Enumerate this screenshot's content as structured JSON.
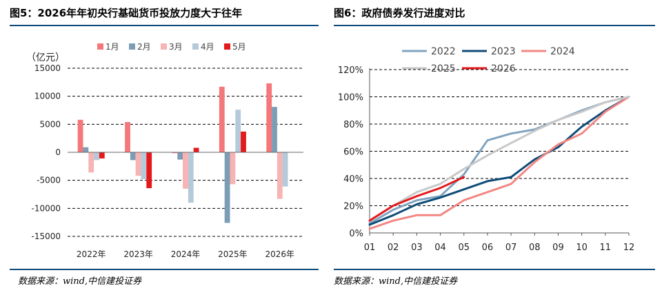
{
  "left": {
    "title": "图5：2026年年初央行基础货币投放力度大于往年",
    "source": "数据来源：wind,中信建投证券"
  },
  "right": {
    "title": "图6：政府债券发行进度对比",
    "source": "数据来源：wind,中信建投证券"
  },
  "colors": {
    "rule": "#0b4a7a"
  },
  "chart_data": [
    {
      "type": "bar",
      "title": "",
      "unit_label": "（亿元）",
      "categories": [
        "2022年",
        "2023年",
        "2024年",
        "2025年",
        "2026年"
      ],
      "ylim": [
        -15000,
        15000
      ],
      "yticks": [
        15000,
        10000,
        5000,
        0,
        -5000,
        -10000,
        -15000
      ],
      "grid": true,
      "legend_position": "top",
      "series": [
        {
          "name": "1月",
          "color": "#f4777a",
          "values": [
            5800,
            5400,
            -150,
            11700,
            12300
          ]
        },
        {
          "name": "2月",
          "color": "#7d9db5",
          "values": [
            900,
            -1400,
            -1300,
            -12600,
            8100
          ]
        },
        {
          "name": "3月",
          "color": "#f8b3b4",
          "values": [
            -3600,
            -4200,
            -6500,
            -5700,
            -8300
          ]
        },
        {
          "name": "4月",
          "color": "#b4cad9",
          "values": [
            -1400,
            -4800,
            -9000,
            7600,
            -6100
          ]
        },
        {
          "name": "5月",
          "color": "#e4191c",
          "values": [
            -1100,
            -6400,
            800,
            3700,
            null
          ]
        }
      ]
    },
    {
      "type": "line",
      "title": "",
      "x": [
        "01",
        "02",
        "03",
        "04",
        "05",
        "06",
        "07",
        "08",
        "09",
        "10",
        "11",
        "12"
      ],
      "ylim": [
        0,
        120
      ],
      "yticks": [
        "0%",
        "20%",
        "40%",
        "60%",
        "80%",
        "100%",
        "120%"
      ],
      "grid": true,
      "legend_position": "top",
      "series": [
        {
          "name": "2022",
          "color": "#7fa3c0",
          "values": [
            7,
            17,
            24,
            27,
            43,
            68,
            73,
            76,
            83,
            90,
            96,
            100
          ]
        },
        {
          "name": "2023",
          "color": "#0d4b77",
          "values": [
            6,
            13,
            21,
            26,
            32,
            38,
            41,
            54,
            63,
            78,
            90,
            100
          ]
        },
        {
          "name": "2024",
          "color": "#f28682",
          "values": [
            3,
            9,
            13,
            13,
            24,
            30,
            36,
            52,
            65,
            73,
            89,
            100
          ]
        },
        {
          "name": "2025",
          "color": "#c8c8c8",
          "values": [
            9,
            20,
            30,
            36,
            47,
            57,
            66,
            75,
            83,
            89,
            96,
            100
          ]
        },
        {
          "name": "2026",
          "color": "#e4191c",
          "values": [
            9,
            20,
            27,
            33,
            41,
            null,
            null,
            null,
            null,
            null,
            null,
            null
          ]
        }
      ]
    }
  ]
}
